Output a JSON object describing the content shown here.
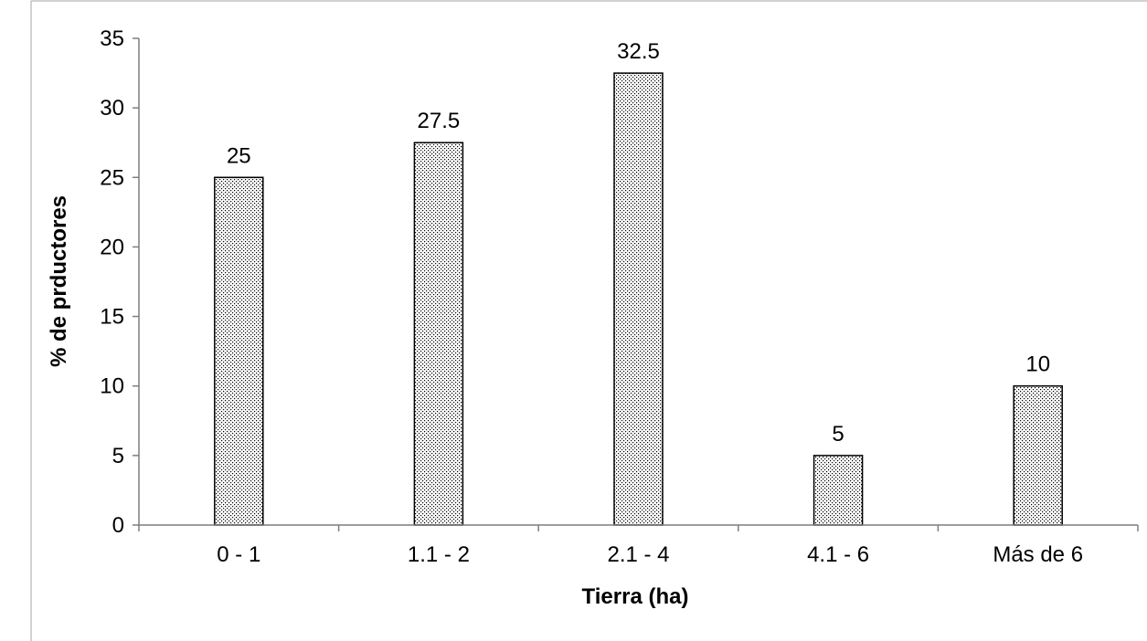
{
  "chart_data": {
    "type": "bar",
    "categories": [
      "0 - 1",
      "1.1 - 2",
      "2.1 - 4",
      "4.1 - 6",
      "Más de 6"
    ],
    "values": [
      25,
      27.5,
      32.5,
      5,
      10
    ],
    "data_labels": [
      "25",
      "27.5",
      "32.5",
      "5",
      "10"
    ],
    "title": "",
    "xlabel": "Tierra (ha)",
    "ylabel": "% de prductores",
    "ylim": [
      0,
      35
    ],
    "yticks": [
      0,
      5,
      10,
      15,
      20,
      25,
      30,
      35
    ],
    "grid": false,
    "legend": "none",
    "bar_pattern": "dotted",
    "colors": {
      "bar_fill": "#ffffff",
      "bar_dots": "#000000",
      "bar_border": "#000000",
      "axis": "#7f7f7f"
    }
  }
}
